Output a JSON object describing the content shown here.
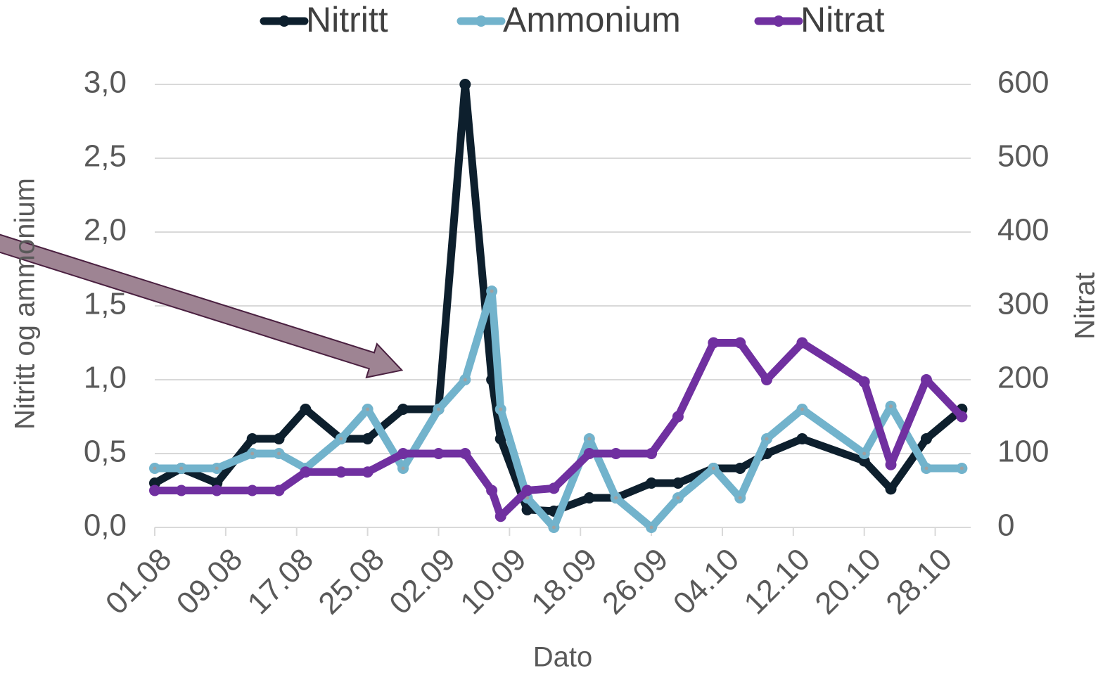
{
  "chart_data": {
    "type": "line",
    "x": [
      "01.08",
      "04.08",
      "08.08",
      "12.08",
      "15.08",
      "18.08",
      "22.08",
      "25.08",
      "29.08",
      "02.09",
      "05.09",
      "08.09",
      "09.09",
      "12.09",
      "15.09",
      "19.09",
      "22.09",
      "26.09",
      "29.09",
      "03.10",
      "06.10",
      "09.10",
      "13.10",
      "20.10",
      "23.10",
      "27.10",
      "31.10"
    ],
    "series": [
      {
        "name": "Nitritt",
        "color": "#0d1f2d",
        "values": [
          0.3,
          0.4,
          0.3,
          0.6,
          0.6,
          0.8,
          0.6,
          0.6,
          0.8,
          0.8,
          3.0,
          1.0,
          0.6,
          0.12,
          0.11,
          0.2,
          0.2,
          0.3,
          0.3,
          0.4,
          0.4,
          0.5,
          0.6,
          0.45,
          0.26,
          0.6,
          0.8
        ]
      },
      {
        "name": "Ammonium",
        "color": "#72b3cc",
        "values": [
          0.4,
          0.4,
          0.4,
          0.5,
          0.5,
          0.4,
          0.6,
          0.8,
          0.4,
          0.8,
          1.0,
          1.6,
          0.8,
          0.2,
          0.0,
          0.6,
          0.2,
          0.0,
          0.2,
          0.4,
          0.2,
          0.6,
          0.8,
          0.5,
          0.82,
          0.4,
          0.4
        ]
      },
      {
        "name": "Nitrat",
        "color": "#7030a0",
        "axis": "y2",
        "values": [
          50,
          50,
          50,
          50,
          50,
          75,
          75,
          75,
          100,
          100,
          100,
          50,
          15,
          50,
          53,
          100,
          100,
          100,
          150,
          250,
          250,
          200,
          250,
          197,
          85,
          200,
          150
        ]
      }
    ],
    "xlim": [
      "01.08",
      "01.11"
    ],
    "xticks": [
      "01.08",
      "09.08",
      "17.08",
      "25.08",
      "02.09",
      "10.09",
      "18.09",
      "26.09",
      "04.10",
      "12.10",
      "20.10",
      "28.10"
    ],
    "ylim": [
      0,
      3
    ],
    "yticks": [
      {
        "value": 0,
        "label": "0,0"
      },
      {
        "value": 0.5,
        "label": "0,5"
      },
      {
        "value": 1,
        "label": "1,0"
      },
      {
        "value": 1.5,
        "label": "1,5"
      },
      {
        "value": 2,
        "label": "2,0"
      },
      {
        "value": 2.5,
        "label": "2,5"
      },
      {
        "value": 3,
        "label": "3,0"
      }
    ],
    "y2lim": [
      0,
      600
    ],
    "y2ticks": [
      0,
      100,
      200,
      300,
      400,
      500,
      600
    ],
    "xlabel": "Dato",
    "ylabel": "Nitritt og ammonium",
    "y2label": "Nitrat",
    "grid": true,
    "legend": "top"
  }
}
